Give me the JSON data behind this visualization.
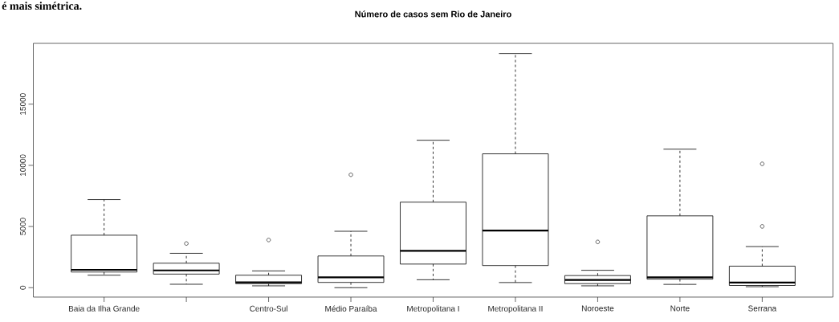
{
  "chart_data": {
    "type": "box",
    "title": "Número de casos sem Rio de Janeiro",
    "annotations": [
      "é mais simétrica."
    ],
    "categories": [
      "Baia da Ilha Grande",
      null,
      "Centro-Sul",
      "Médio Paraíba",
      "Metropolitana I",
      "Metropolitana II",
      "Noroeste",
      "Norte",
      "Serrana"
    ],
    "boxes": [
      {
        "low": 1020,
        "q1": 1280,
        "median": 1460,
        "q3": 4290,
        "high": 7200
      },
      {
        "low": 280,
        "q1": 1110,
        "median": 1410,
        "q3": 2000,
        "high": 2810,
        "outliers": [
          3610
        ]
      },
      {
        "low": 150,
        "q1": 330,
        "median": 430,
        "q3": 1020,
        "high": 1370,
        "outliers": [
          3900
        ]
      },
      {
        "low": 0,
        "q1": 430,
        "median": 850,
        "q3": 2590,
        "high": 4610,
        "outliers": [
          9230
        ]
      },
      {
        "low": 650,
        "q1": 1930,
        "median": 3010,
        "q3": 6990,
        "high": 12050
      },
      {
        "low": 420,
        "q1": 1810,
        "median": 4670,
        "q3": 10940,
        "high": 19140
      },
      {
        "low": 150,
        "q1": 330,
        "median": 630,
        "q3": 990,
        "high": 1420,
        "outliers": [
          3740
        ]
      },
      {
        "low": 270,
        "q1": 700,
        "median": 840,
        "q3": 5870,
        "high": 11320
      },
      {
        "low": 80,
        "q1": 180,
        "median": 420,
        "q3": 1760,
        "high": 3360,
        "outliers": [
          5010,
          10120
        ]
      }
    ],
    "ylim": [
      -770,
      19970
    ],
    "yticks": [
      0,
      5000,
      10000,
      15000
    ]
  }
}
